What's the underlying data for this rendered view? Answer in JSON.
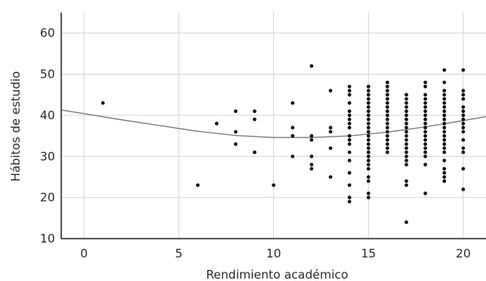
{
  "chart_data": {
    "type": "scatter",
    "title": "",
    "xlabel": "Rendimiento académico",
    "ylabel": "Hábitos de estudio",
    "xlim": [
      -1.2,
      21.2
    ],
    "ylim": [
      10,
      65
    ],
    "xticks": [
      "0",
      "5",
      "10",
      "15",
      "20"
    ],
    "xtick_values": [
      0,
      5,
      10,
      15,
      20
    ],
    "yticks": [
      "10",
      "20",
      "30",
      "40",
      "50",
      "60"
    ],
    "ytick_values": [
      10,
      20,
      30,
      40,
      50,
      60
    ],
    "grid": true,
    "colors": {
      "points": "#111111",
      "fit_line": "#777777",
      "grid": "#d6d6d6",
      "axis": "#222222"
    },
    "points": [
      [
        1,
        43
      ],
      [
        6,
        23
      ],
      [
        7,
        38
      ],
      [
        8,
        41
      ],
      [
        8,
        36
      ],
      [
        8,
        33
      ],
      [
        9,
        41
      ],
      [
        9,
        39
      ],
      [
        9,
        31
      ],
      [
        10,
        23
      ],
      [
        11,
        43
      ],
      [
        11,
        37
      ],
      [
        11,
        35
      ],
      [
        11,
        30
      ],
      [
        12,
        52
      ],
      [
        12,
        35
      ],
      [
        12,
        34
      ],
      [
        12,
        30
      ],
      [
        12,
        28
      ],
      [
        12,
        27
      ],
      [
        13,
        46
      ],
      [
        13,
        37
      ],
      [
        13,
        36
      ],
      [
        13,
        32
      ],
      [
        13,
        25
      ],
      [
        14,
        47
      ],
      [
        14,
        46
      ],
      [
        14,
        45
      ],
      [
        14,
        43
      ],
      [
        14,
        41
      ],
      [
        14,
        40
      ],
      [
        14,
        39
      ],
      [
        14,
        38
      ],
      [
        14,
        37
      ],
      [
        14,
        35
      ],
      [
        14,
        34
      ],
      [
        14,
        33
      ],
      [
        14,
        31
      ],
      [
        14,
        29
      ],
      [
        14,
        26
      ],
      [
        14,
        23
      ],
      [
        14,
        20
      ],
      [
        14,
        19
      ],
      [
        15,
        47
      ],
      [
        15,
        46
      ],
      [
        15,
        45
      ],
      [
        15,
        44
      ],
      [
        15,
        43
      ],
      [
        15,
        42
      ],
      [
        15,
        41
      ],
      [
        15,
        40
      ],
      [
        15,
        39
      ],
      [
        15,
        38
      ],
      [
        15,
        37
      ],
      [
        15,
        36
      ],
      [
        15,
        35
      ],
      [
        15,
        34
      ],
      [
        15,
        33
      ],
      [
        15,
        32
      ],
      [
        15,
        31
      ],
      [
        15,
        30
      ],
      [
        15,
        29
      ],
      [
        15,
        28
      ],
      [
        15,
        27
      ],
      [
        15,
        25
      ],
      [
        15,
        24
      ],
      [
        15,
        21
      ],
      [
        15,
        20
      ],
      [
        16,
        48
      ],
      [
        16,
        47
      ],
      [
        16,
        46
      ],
      [
        16,
        45
      ],
      [
        16,
        44
      ],
      [
        16,
        43
      ],
      [
        16,
        42
      ],
      [
        16,
        41
      ],
      [
        16,
        40
      ],
      [
        16,
        39
      ],
      [
        16,
        38
      ],
      [
        16,
        37
      ],
      [
        16,
        36
      ],
      [
        16,
        35
      ],
      [
        16,
        34
      ],
      [
        16,
        33
      ],
      [
        16,
        32
      ],
      [
        16,
        31
      ],
      [
        17,
        45
      ],
      [
        17,
        44
      ],
      [
        17,
        43
      ],
      [
        17,
        42
      ],
      [
        17,
        41
      ],
      [
        17,
        40
      ],
      [
        17,
        39
      ],
      [
        17,
        38
      ],
      [
        17,
        37
      ],
      [
        17,
        36
      ],
      [
        17,
        35
      ],
      [
        17,
        34
      ],
      [
        17,
        33
      ],
      [
        17,
        32
      ],
      [
        17,
        31
      ],
      [
        17,
        30
      ],
      [
        17,
        29
      ],
      [
        17,
        28
      ],
      [
        17,
        24
      ],
      [
        17,
        23
      ],
      [
        17,
        14
      ],
      [
        18,
        48
      ],
      [
        18,
        47
      ],
      [
        18,
        45
      ],
      [
        18,
        44
      ],
      [
        18,
        43
      ],
      [
        18,
        42
      ],
      [
        18,
        41
      ],
      [
        18,
        40
      ],
      [
        18,
        39
      ],
      [
        18,
        38
      ],
      [
        18,
        37
      ],
      [
        18,
        36
      ],
      [
        18,
        35
      ],
      [
        18,
        34
      ],
      [
        18,
        33
      ],
      [
        18,
        32
      ],
      [
        18,
        31
      ],
      [
        18,
        30
      ],
      [
        18,
        28
      ],
      [
        18,
        21
      ],
      [
        19,
        51
      ],
      [
        19,
        48
      ],
      [
        19,
        46
      ],
      [
        19,
        45
      ],
      [
        19,
        44
      ],
      [
        19,
        43
      ],
      [
        19,
        42
      ],
      [
        19,
        41
      ],
      [
        19,
        40
      ],
      [
        19,
        39
      ],
      [
        19,
        38
      ],
      [
        19,
        37
      ],
      [
        19,
        36
      ],
      [
        19,
        35
      ],
      [
        19,
        34
      ],
      [
        19,
        33
      ],
      [
        19,
        32
      ],
      [
        19,
        31
      ],
      [
        19,
        29
      ],
      [
        19,
        27
      ],
      [
        19,
        26
      ],
      [
        19,
        25
      ],
      [
        19,
        24
      ],
      [
        20,
        51
      ],
      [
        20,
        46
      ],
      [
        20,
        45
      ],
      [
        20,
        44
      ],
      [
        20,
        42
      ],
      [
        20,
        41
      ],
      [
        20,
        40
      ],
      [
        20,
        39
      ],
      [
        20,
        38
      ],
      [
        20,
        37
      ],
      [
        20,
        36
      ],
      [
        20,
        34
      ],
      [
        20,
        32
      ],
      [
        20,
        31
      ],
      [
        20,
        27
      ],
      [
        20,
        22
      ]
    ],
    "fit_curve": {
      "type": "quadratic",
      "x": [
        -1.2,
        0,
        2,
        4,
        6,
        8,
        10,
        12,
        14,
        16,
        18,
        20,
        21.2
      ],
      "y": [
        41.3,
        40.4,
        38.9,
        37.5,
        36.1,
        35.1,
        34.6,
        34.6,
        35.0,
        35.9,
        37.2,
        38.7,
        39.7
      ]
    }
  }
}
